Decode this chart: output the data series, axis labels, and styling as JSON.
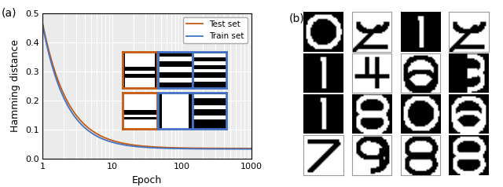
{
  "panel_a_label": "(a)",
  "panel_b_label": "(b)",
  "xlabel": "Epoch",
  "ylabel": "Hamming distance",
  "ylim": [
    0.0,
    0.5
  ],
  "yticks": [
    0.0,
    0.1,
    0.2,
    0.3,
    0.4,
    0.5
  ],
  "xticks_log": [
    1,
    10,
    100,
    1000
  ],
  "legend_train": "Train set",
  "legend_test": "Test set",
  "train_color": "#4472c4",
  "test_color": "#c55a11",
  "background": "#ebebeb",
  "grid_color": "white",
  "insets": [
    {
      "row": 0,
      "col": 0,
      "border": "#c55a11",
      "pattern": "white_top_stripes_bottom"
    },
    {
      "row": 0,
      "col": 1,
      "border": "#4472c4",
      "pattern": "full_stripes"
    },
    {
      "row": 0,
      "col": 2,
      "border": "#4472c4",
      "pattern": "black_left_white_right"
    },
    {
      "row": 1,
      "col": 0,
      "border": "#c55a11",
      "pattern": "white_top_stripes_bottom2"
    },
    {
      "row": 1,
      "col": 1,
      "border": "#4472c4",
      "pattern": "black_left_white_middle"
    },
    {
      "row": 1,
      "col": 2,
      "border": "#4472c4",
      "pattern": "black_stripes_right"
    }
  ],
  "digit_labels": [
    [
      "0",
      "2",
      "1",
      "2"
    ],
    [
      "1",
      "4",
      "6",
      "3"
    ],
    [
      "1",
      "8",
      "0",
      "6"
    ],
    [
      "7",
      "9",
      "8",
      "8"
    ]
  ],
  "digit_bg": [
    [
      "black",
      "white",
      "black",
      "white"
    ],
    [
      "black",
      "white",
      "white",
      "black"
    ],
    [
      "black",
      "black",
      "black",
      "black"
    ],
    [
      "white",
      "white",
      "white",
      "black"
    ]
  ]
}
